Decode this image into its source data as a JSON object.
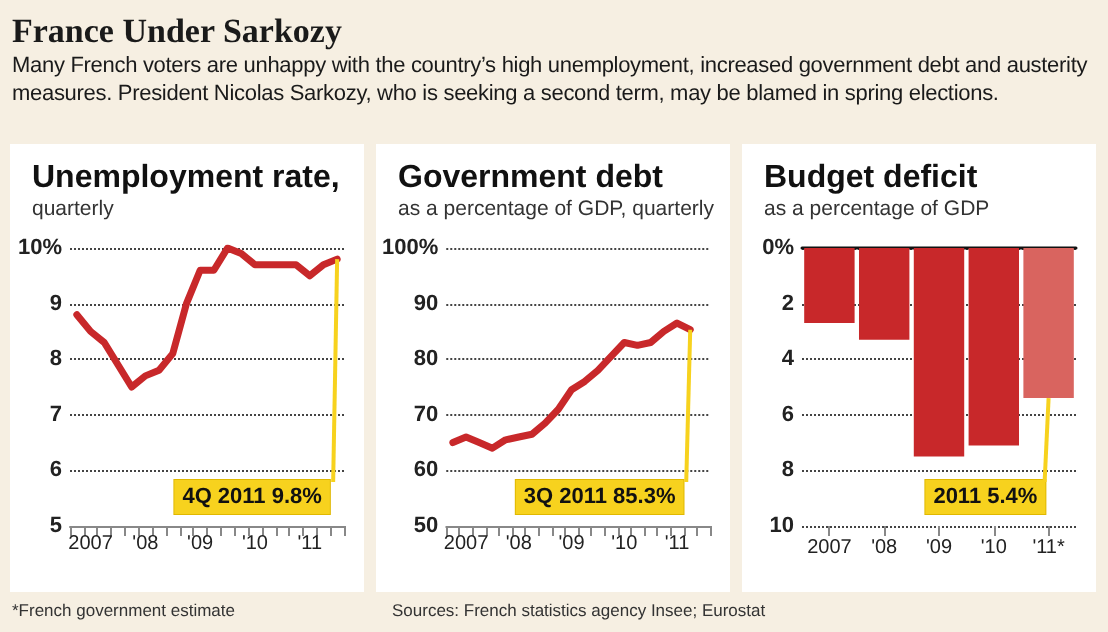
{
  "chart_data": [
    {
      "type": "other",
      "title": "France Under Sarkozy",
      "subtitle": "Many French voters are unhappy with the country’s high unemployment, increased government debt and austerity measures. President Nicolas Sarkozy, who is seeking a second term, may be blamed in spring elections."
    },
    {
      "type": "line",
      "title": "Unemployment rate,",
      "subtitle": "quarterly",
      "categories": [
        null,
        "2007",
        null,
        null,
        null,
        "'08",
        null,
        null,
        null,
        "'09",
        null,
        null,
        null,
        "'10",
        null,
        null,
        null,
        "'11",
        null,
        null
      ],
      "values": [
        8.8,
        8.5,
        8.3,
        7.9,
        7.5,
        7.7,
        7.8,
        8.1,
        9.0,
        9.6,
        9.6,
        10.0,
        9.9,
        9.7,
        9.7,
        9.7,
        9.7,
        9.5,
        9.7,
        9.8
      ],
      "color": "#c8282a",
      "ylim": [
        5,
        10
      ],
      "yticks": [
        5,
        6,
        7,
        8,
        9,
        {
          "value": 10,
          "label": "10%"
        }
      ],
      "grid": "y",
      "marker": "none",
      "annotations": [
        "4Q 2011 9.8%"
      ]
    },
    {
      "type": "line",
      "title": "Government debt",
      "subtitle": "as a percentage of GDP, quarterly",
      "categories": [
        null,
        "2007",
        null,
        null,
        null,
        "'08",
        null,
        null,
        null,
        "'09",
        null,
        null,
        null,
        "'10",
        null,
        null,
        null,
        "'11",
        null,
        null
      ],
      "values": [
        65,
        66,
        65,
        64,
        65.5,
        66,
        66.5,
        68.5,
        71,
        74.5,
        76,
        78,
        80.5,
        83,
        82.5,
        83,
        85,
        86.5,
        85.3,
        null
      ],
      "color": "#c8282a",
      "ylim": [
        50,
        100
      ],
      "yticks": [
        50,
        60,
        70,
        80,
        90,
        {
          "value": 100,
          "label": "100%"
        }
      ],
      "grid": "y",
      "marker": "none",
      "annotations": [
        "3Q 2011 85.3%"
      ]
    },
    {
      "type": "bar",
      "title": "Budget deficit",
      "subtitle": "as a percentage of GDP",
      "categories": [
        "2007",
        "'08",
        "'09",
        "'10",
        "'11*"
      ],
      "values": [
        2.7,
        3.3,
        7.5,
        7.1,
        5.4
      ],
      "colors": [
        "#c8282a",
        "#c8282a",
        "#c8282a",
        "#c8282a",
        "#d9645f"
      ],
      "ylim": [
        10,
        0
      ],
      "yticks": [
        {
          "value": 0,
          "label": "0%"
        },
        2,
        4,
        6,
        8,
        10
      ],
      "grid": "y",
      "annotations": [
        {
          "text": "2011 5.4%",
          "x": "'11*",
          "y": 5.4
        }
      ]
    },
    {
      "type": "other",
      "annotations": [
        "*French government estimate",
        "Sources: French statistics agency Insee; Eurostat"
      ]
    }
  ]
}
